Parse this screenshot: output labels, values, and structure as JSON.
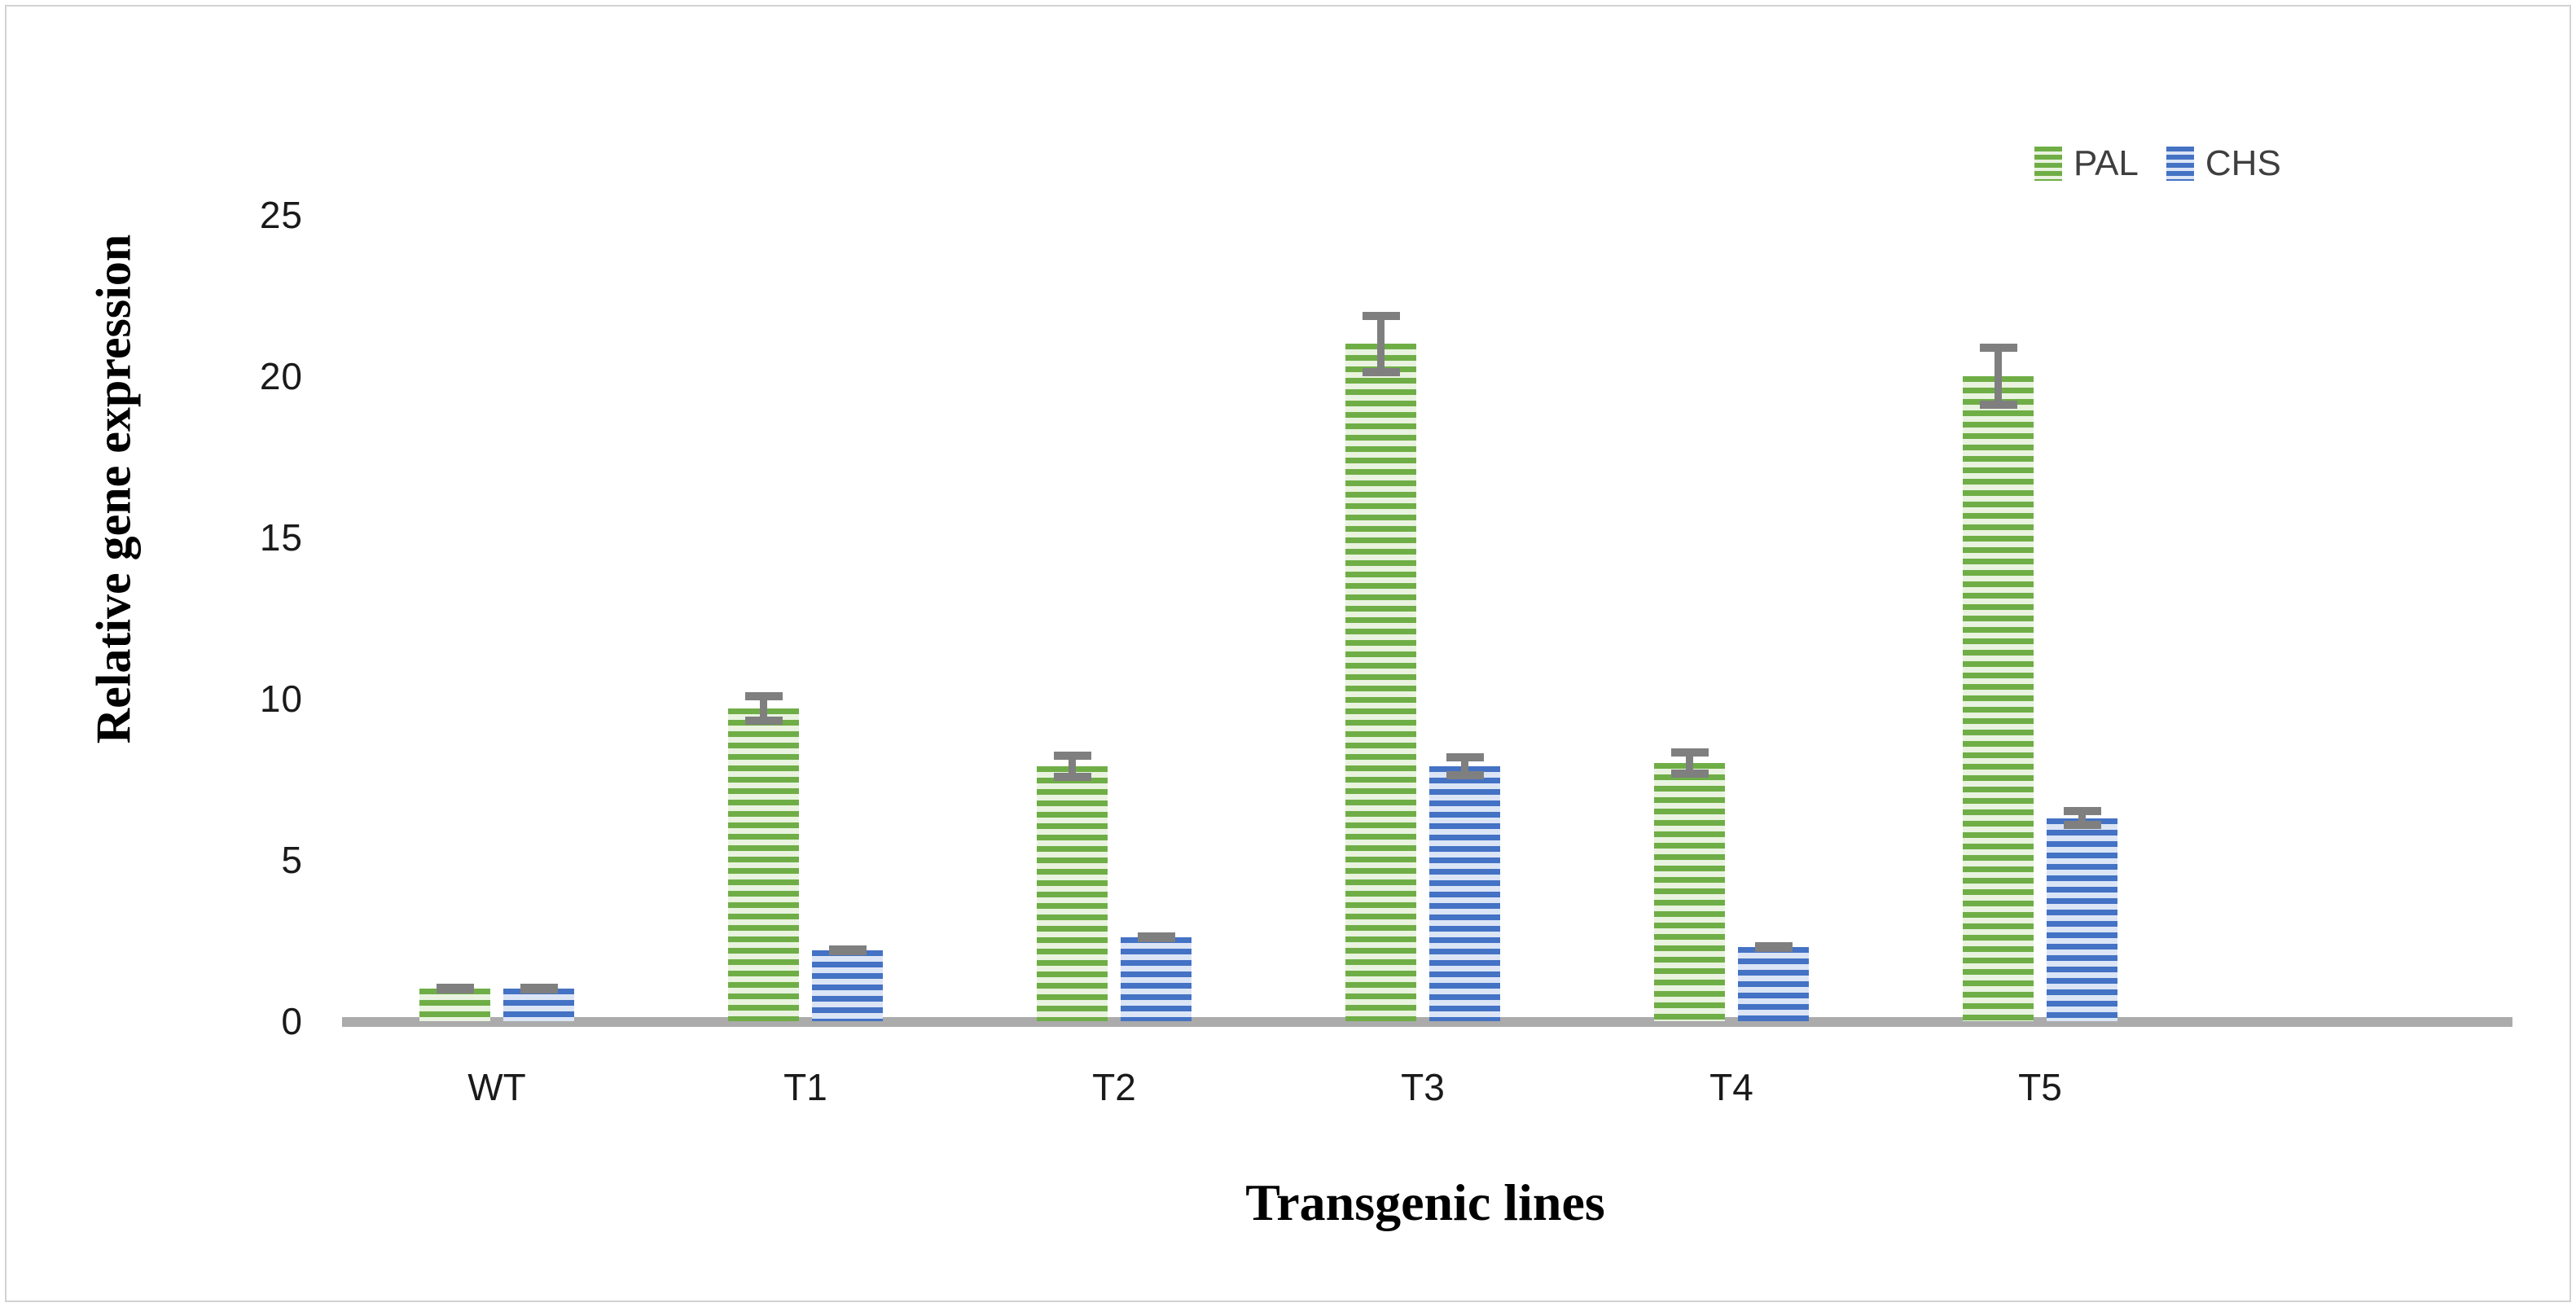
{
  "chart_data": {
    "type": "bar",
    "title": "",
    "categories": [
      "WT",
      "T1",
      "T2",
      "T3",
      "T4",
      "T5"
    ],
    "series": [
      {
        "name": "PAL",
        "values": [
          1.0,
          9.7,
          7.9,
          21.0,
          8.0,
          20.0
        ],
        "errors": [
          0.15,
          0.5,
          0.45,
          1.0,
          0.45,
          1.0
        ],
        "stripe_dark": "#6fae46",
        "stripe_light": "#e9f3e0"
      },
      {
        "name": "CHS",
        "values": [
          1.0,
          2.2,
          2.6,
          7.9,
          2.3,
          6.3
        ],
        "errors": [
          0.15,
          0.15,
          0.15,
          0.4,
          0.1,
          0.35
        ],
        "stripe_dark": "#4472c4",
        "stripe_light": "#dbe5f6"
      }
    ],
    "xlabel": "Transgenic lines",
    "ylabel": "Relative gene expression",
    "ylim": [
      0,
      25
    ],
    "yticks": [
      0,
      5,
      10,
      15,
      20,
      25
    ],
    "grid": false,
    "legend_position": "top-right",
    "bar_pattern": "horizontal-stripes",
    "error_bar_color": "#7f7f7f",
    "axis_line_color": "#ababab",
    "frame_border_color": "#d2d2d2"
  }
}
